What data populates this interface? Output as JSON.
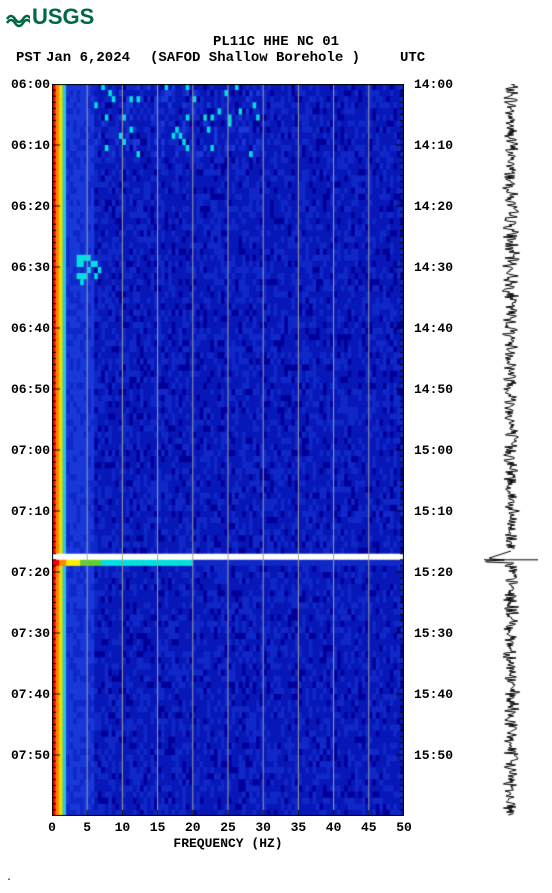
{
  "logo": {
    "text": "USGS",
    "color": "#006747"
  },
  "header": {
    "title": "PL11C HHE NC 01",
    "tz_left": "PST",
    "date": "Jan 6,2024",
    "station": "(SAFOD Shallow Borehole )",
    "tz_right": "UTC"
  },
  "spectrogram": {
    "type": "spectrogram",
    "x_axis": {
      "label": "FREQUENCY (HZ)",
      "min": 0,
      "max": 50,
      "tick_step": 5,
      "ticks": [
        0,
        5,
        10,
        15,
        20,
        25,
        30,
        35,
        40,
        45,
        50
      ]
    },
    "y_axis_left": {
      "label": "PST",
      "ticks": [
        "06:00",
        "06:10",
        "06:20",
        "06:30",
        "06:40",
        "06:50",
        "07:00",
        "07:10",
        "07:20",
        "07:30",
        "07:40",
        "07:50"
      ]
    },
    "y_axis_right": {
      "label": "UTC",
      "ticks": [
        "14:00",
        "14:10",
        "14:20",
        "14:30",
        "14:40",
        "14:50",
        "15:00",
        "15:10",
        "15:20",
        "15:30",
        "15:40",
        "15:50"
      ]
    },
    "time_rows": 120,
    "gap_row_index": 77,
    "bright_band_row_index": 78,
    "colors": {
      "bg_low": "#000099",
      "bg_mid": "#0818b8",
      "bg_noise": "#1028c8",
      "low_freq_edge": "#ff0000",
      "low_freq_edge2": "#ff8800",
      "cyan": "#00e0e0",
      "yellow": "#ffee00",
      "green": "#60d030",
      "white": "#ffffff",
      "grid": "#a0a0a0",
      "tick": "#000000"
    },
    "gridlines_x": [
      5,
      10,
      15,
      20,
      25,
      30,
      35,
      40,
      45
    ],
    "font_size_ticks": 13,
    "font_weight_ticks": "bold"
  },
  "waveform": {
    "color": "#000000",
    "amplitude_base": 6,
    "amplitude_noise": 3,
    "spike_row_index": 78,
    "spike_amplitude": 26
  },
  "footer": {
    "mark": "·"
  }
}
